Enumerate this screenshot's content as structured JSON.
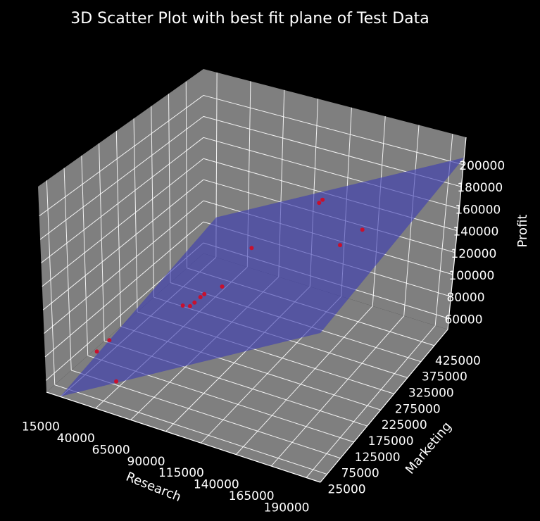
{
  "chart_data": {
    "type": "scatter",
    "title": "3D Scatter Plot with best fit plane of Test Data",
    "xlabel": "Research",
    "ylabel": "Marketing",
    "zlabel": "Profit",
    "x_ticks": [
      "15000",
      "40000",
      "65000",
      "90000",
      "115000",
      "140000",
      "165000",
      "190000"
    ],
    "y_ticks": [
      "25000",
      "75000",
      "125000",
      "175000",
      "225000",
      "275000",
      "325000",
      "375000",
      "425000"
    ],
    "z_ticks": [
      "60000",
      "80000",
      "100000",
      "120000",
      "140000",
      "160000",
      "180000",
      "200000"
    ],
    "xlim": [
      5000,
      200000
    ],
    "ylim": [
      0,
      475000
    ],
    "zlim": [
      50000,
      225000
    ],
    "grid": true,
    "background": "#000000",
    "pane_color": "#7f7f7f",
    "grid_color": "#ffffff",
    "point_color": "#c8102e",
    "plane_color": "#3c3cb4",
    "plane": {
      "x_range": [
        15000,
        200000
      ],
      "y_range": [
        0,
        475000
      ]
    },
    "points": [
      {
        "x": 18000,
        "y": 100000,
        "z": 65000
      },
      {
        "x": 20000,
        "y": 130000,
        "z": 68000
      },
      {
        "x": 46000,
        "y": 40000,
        "z": 65000
      },
      {
        "x": 60000,
        "y": 190000,
        "z": 98000
      },
      {
        "x": 63000,
        "y": 200000,
        "z": 96000
      },
      {
        "x": 64000,
        "y": 210000,
        "z": 97000
      },
      {
        "x": 66000,
        "y": 220000,
        "z": 100000
      },
      {
        "x": 67000,
        "y": 228000,
        "z": 101000
      },
      {
        "x": 75000,
        "y": 250000,
        "z": 105000
      },
      {
        "x": 78000,
        "y": 330000,
        "z": 120000
      },
      {
        "x": 100000,
        "y": 450000,
        "z": 138000
      },
      {
        "x": 102000,
        "y": 452000,
        "z": 141000
      },
      {
        "x": 150000,
        "y": 300000,
        "z": 155000
      },
      {
        "x": 170000,
        "y": 280000,
        "z": 180000
      }
    ]
  }
}
